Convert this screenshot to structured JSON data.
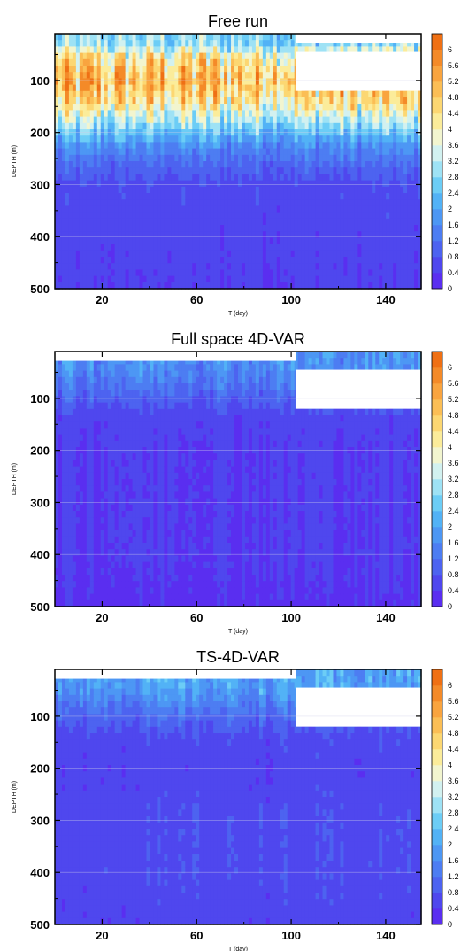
{
  "chart_data": [
    {
      "type": "heatmap",
      "title": "Free run",
      "xlabel": "T (day)",
      "ylabel": "DEPTH (m)",
      "xlim": [
        0,
        155
      ],
      "ylim": [
        500,
        10
      ],
      "x_ticks": [
        20,
        60,
        100,
        140
      ],
      "y_ticks": [
        100,
        200,
        300,
        400,
        500
      ],
      "colorbar": {
        "min": 0,
        "max": 6,
        "step": 0.4,
        "labels": [
          "0",
          "0.4",
          "0.8",
          "1.2",
          "1.6",
          "2",
          "2.4",
          "2.8",
          "3.2",
          "3.6",
          "4",
          "4.4",
          "4.8",
          "5.2",
          "5.6",
          "6"
        ]
      },
      "missing_regions": [
        {
          "x": [
            102,
            155
          ],
          "depth": [
            45,
            120
          ]
        },
        {
          "x": [
            102,
            155
          ],
          "depth": [
            10,
            28
          ]
        }
      ],
      "depth_profile": [
        {
          "depth": 30,
          "value": 2.6
        },
        {
          "depth": 60,
          "value": 4.0
        },
        {
          "depth": 100,
          "value": 4.6
        },
        {
          "depth": 140,
          "value": 4.0
        },
        {
          "depth": 180,
          "value": 2.8
        },
        {
          "depth": 220,
          "value": 1.6
        },
        {
          "depth": 260,
          "value": 1.0
        },
        {
          "depth": 300,
          "value": 0.6
        },
        {
          "depth": 400,
          "value": 0.5
        },
        {
          "depth": 500,
          "value": 0.4
        }
      ]
    },
    {
      "type": "heatmap",
      "title": "Full space 4D-VAR",
      "xlabel": "T (day)",
      "ylabel": "DEPTH (m)",
      "xlim": [
        0,
        155
      ],
      "ylim": [
        500,
        10
      ],
      "x_ticks": [
        20,
        60,
        100,
        140
      ],
      "y_ticks": [
        100,
        200,
        300,
        400,
        500
      ],
      "colorbar": {
        "min": 0,
        "max": 6,
        "step": 0.4,
        "labels": [
          "0",
          "0.4",
          "0.8",
          "1.2",
          "1.6",
          "2",
          "2.4",
          "2.8",
          "3.2",
          "3.6",
          "4",
          "4.4",
          "4.8",
          "5.2",
          "5.6",
          "6"
        ]
      },
      "missing_regions": [
        {
          "x": [
            102,
            155
          ],
          "depth": [
            45,
            120
          ]
        },
        {
          "x": [
            0,
            102
          ],
          "depth": [
            10,
            28
          ]
        }
      ],
      "depth_profile": [
        {
          "depth": 30,
          "value": 1.6
        },
        {
          "depth": 60,
          "value": 1.4
        },
        {
          "depth": 100,
          "value": 0.9
        },
        {
          "depth": 140,
          "value": 0.5
        },
        {
          "depth": 200,
          "value": 0.4
        },
        {
          "depth": 300,
          "value": 0.4
        },
        {
          "depth": 400,
          "value": 0.4
        },
        {
          "depth": 500,
          "value": 0.3
        }
      ]
    },
    {
      "type": "heatmap",
      "title": "TS-4D-VAR",
      "xlabel": "T (day)",
      "ylabel": "DEPTH (m)",
      "xlim": [
        0,
        155
      ],
      "ylim": [
        500,
        10
      ],
      "x_ticks": [
        20,
        60,
        100,
        140
      ],
      "y_ticks": [
        100,
        200,
        300,
        400,
        500
      ],
      "colorbar": {
        "min": 0,
        "max": 6,
        "step": 0.4,
        "labels": [
          "0",
          "0.4",
          "0.8",
          "1.2",
          "1.6",
          "2",
          "2.4",
          "2.8",
          "3.2",
          "3.6",
          "4",
          "4.4",
          "4.8",
          "5.2",
          "5.6",
          "6"
        ]
      },
      "missing_regions": [
        {
          "x": [
            102,
            155
          ],
          "depth": [
            45,
            120
          ]
        },
        {
          "x": [
            0,
            102
          ],
          "depth": [
            10,
            28
          ]
        }
      ],
      "depth_profile": [
        {
          "depth": 30,
          "value": 1.8
        },
        {
          "depth": 60,
          "value": 1.6
        },
        {
          "depth": 100,
          "value": 1.0
        },
        {
          "depth": 140,
          "value": 0.6
        },
        {
          "depth": 200,
          "value": 0.5
        },
        {
          "depth": 300,
          "value": 0.6
        },
        {
          "depth": 400,
          "value": 0.6
        },
        {
          "depth": 500,
          "value": 0.5
        }
      ]
    }
  ],
  "colors": {
    "scale": [
      "#5a2ef0",
      "#4f47ee",
      "#4d63f0",
      "#4d7df2",
      "#4d97f4",
      "#52b2f6",
      "#6ccdf6",
      "#9ee2f5",
      "#d2f1f0",
      "#f2f5cf",
      "#fbec9a",
      "#fcd772",
      "#fbbe55",
      "#f9a43f",
      "#f48a28",
      "#ef7014"
    ],
    "missing": "#ffffff",
    "axis": "#000000",
    "grid": "#cfcfe8"
  }
}
